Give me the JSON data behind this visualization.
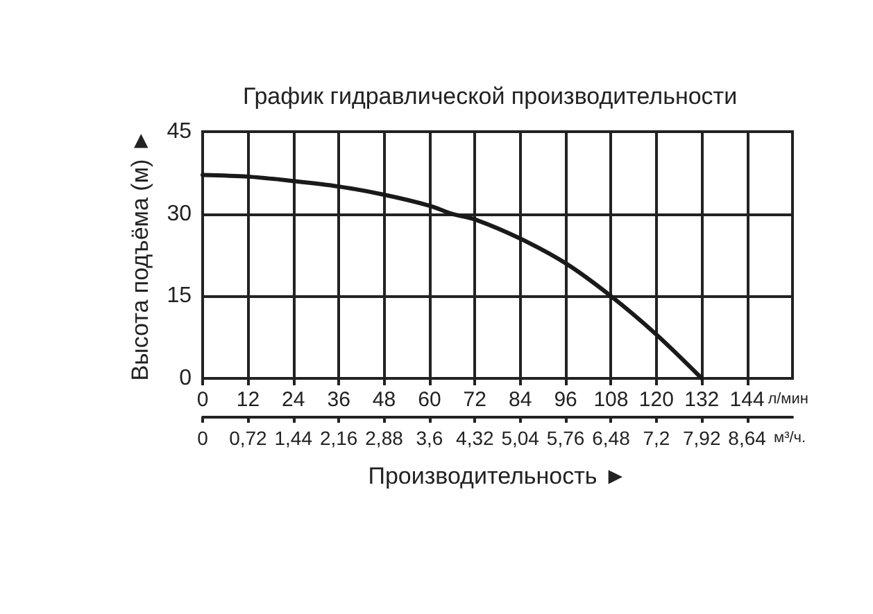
{
  "chart_data": {
    "type": "line",
    "title": "График гидравлической производительности",
    "xlabel": "Производительность ►",
    "ylabel": "Высота подъёма (м) ►",
    "x": [
      0,
      12,
      24,
      36,
      48,
      60,
      66,
      72,
      84,
      96,
      108,
      120,
      132
    ],
    "series": [
      {
        "color": "#1a1a1a",
        "values": [
          37.1,
          36.8,
          36,
          35,
          33.5,
          31.5,
          30,
          29,
          25.5,
          21,
          15,
          8,
          0
        ]
      }
    ],
    "xlim": [
      0,
      156
    ],
    "xticks": [
      0,
      12,
      24,
      36,
      48,
      60,
      72,
      84,
      96,
      108,
      120,
      132,
      144
    ],
    "annotations": [
      "л/мин",
      "м³/ч."
    ],
    "x2lim": [
      0,
      9.36
    ],
    "x2ticks": [
      0,
      {
        "value": 0.72,
        "label": "0,72"
      },
      {
        "value": 1.44,
        "label": "1,44"
      },
      {
        "value": 2.16,
        "label": "2,16"
      },
      {
        "value": 2.88,
        "label": "2,88"
      },
      {
        "value": 3.6,
        "label": "3,6"
      },
      {
        "value": 4.32,
        "label": "4,32"
      },
      {
        "value": 5.04,
        "label": "5,04"
      },
      {
        "value": 5.76,
        "label": "5,76"
      },
      {
        "value": 6.48,
        "label": "6,48"
      },
      {
        "value": 7.2,
        "label": "7,2"
      },
      {
        "value": 7.92,
        "label": "7,92"
      },
      {
        "value": 8.64,
        "label": "8,64"
      }
    ],
    "ylim": [
      0,
      45
    ],
    "yticks": [
      0,
      15,
      30,
      45
    ],
    "grid": true,
    "marker": "none",
    "line_style": "solid"
  }
}
